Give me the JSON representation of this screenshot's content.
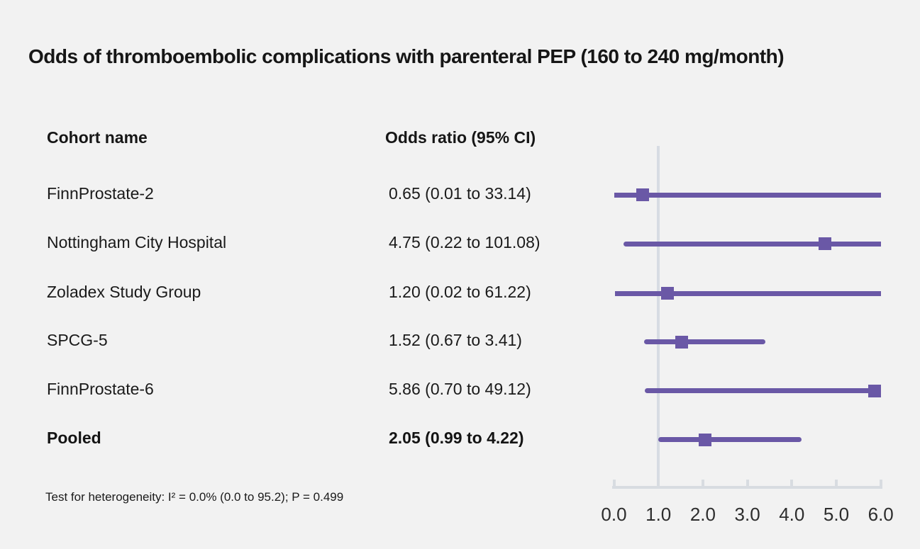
{
  "title": "Odds of thromboembolic complications with parenteral PEP (160 to 240 mg/month)",
  "table": {
    "col1_header": "Cohort name",
    "col2_header": "Odds ratio (95% CI)",
    "rows": [
      {
        "name": "FinnProstate-2",
        "or_text": "0.65 (0.01 to 33.14)"
      },
      {
        "name": "Nottingham City Hospital",
        "or_text": "4.75 (0.22 to 101.08)"
      },
      {
        "name": "Zoladex Study Group",
        "or_text": "1.20 (0.02 to 61.22)"
      },
      {
        "name": "SPCG-5",
        "or_text": "1.52 (0.67 to 3.41)"
      },
      {
        "name": "FinnProstate-6",
        "or_text": "5.86 (0.70 to 49.12)"
      },
      {
        "name": "Pooled",
        "or_text": "2.05 (0.99 to 4.22)"
      }
    ]
  },
  "footnote": "Test for heterogeneity: I² = 0.0% (0.0 to 95.2); P = 0.499",
  "chart_data": {
    "type": "forest",
    "title": "Odds of thromboembolic complications with parenteral PEP (160 to 240 mg/month)",
    "x_range": [
      0.0,
      6.0
    ],
    "x_tick_labels": [
      "0.0",
      "1.0",
      "2.0",
      "3.0",
      "4.0",
      "5.0",
      "6.0"
    ],
    "reference_line_x": 1.0,
    "grid": false,
    "series": [
      {
        "label": "FinnProstate-2",
        "or": 0.65,
        "ci_low": 0.01,
        "ci_high": 33.14,
        "pooled": false
      },
      {
        "label": "Nottingham City Hospital",
        "or": 4.75,
        "ci_low": 0.22,
        "ci_high": 101.08,
        "pooled": false
      },
      {
        "label": "Zoladex Study Group",
        "or": 1.2,
        "ci_low": 0.02,
        "ci_high": 61.22,
        "pooled": false
      },
      {
        "label": "SPCG-5",
        "or": 1.52,
        "ci_low": 0.67,
        "ci_high": 3.41,
        "pooled": false
      },
      {
        "label": "FinnProstate-6",
        "or": 5.86,
        "ci_low": 0.7,
        "ci_high": 49.12,
        "pooled": false
      },
      {
        "label": "Pooled",
        "or": 2.05,
        "ci_low": 0.99,
        "ci_high": 4.22,
        "pooled": true
      }
    ],
    "colors": {
      "marker": "#6a58a6",
      "ci_line": "#6a58a6",
      "reference_line": "#d7dce3",
      "axis": "#d8dce1",
      "background": "#f2f2f2",
      "text": "#1a1a1a"
    },
    "heterogeneity_note": "Test for heterogeneity: I² = 0.0% (0.0 to 95.2); P = 0.499"
  }
}
